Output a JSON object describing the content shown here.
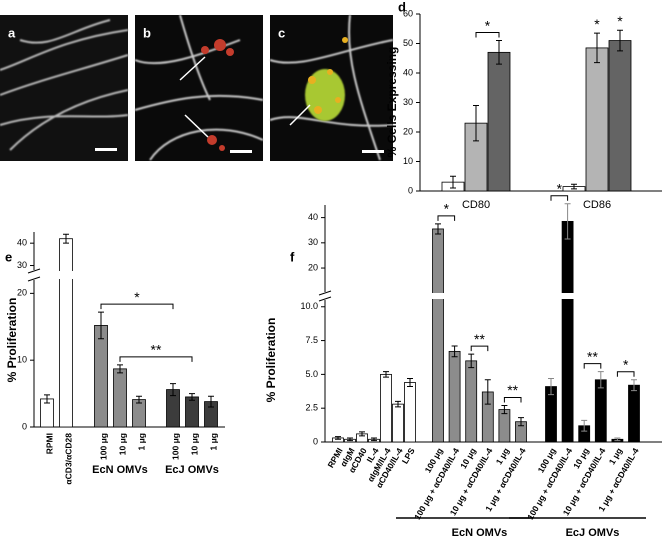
{
  "panels": [
    "a",
    "b",
    "c"
  ],
  "chart_data": [
    {
      "type": "bar",
      "label": "d",
      "ylabel": "% Cells Expressing",
      "categories": [
        "CD80",
        "CD86"
      ],
      "series": [
        {
          "color": "#ffffff",
          "values": [
            3,
            1.5
          ],
          "errors": [
            2,
            0.8
          ]
        },
        {
          "color": "#b4b4b4",
          "values": [
            23,
            48.5
          ],
          "errors": [
            6,
            5
          ]
        },
        {
          "color": "#646464",
          "values": [
            47,
            51
          ],
          "errors": [
            4,
            3.5
          ]
        }
      ],
      "ylim": [
        0,
        60
      ],
      "yticks": [
        0,
        10,
        20,
        30,
        40,
        50,
        60
      ],
      "annotations": [
        "*",
        "*",
        "*"
      ]
    },
    {
      "type": "bar",
      "label": "e",
      "ylabel": "% Proliferation",
      "categories": [
        "RPMI",
        "αCD3/αCD28",
        "100 μg",
        "10 μg",
        "1 μg",
        "100 μg",
        "10 μg",
        "1 μg"
      ],
      "values": [
        4.2,
        42,
        15.2,
        8.7,
        4.1,
        5.6,
        4.5,
        3.8
      ],
      "errors": [
        0.6,
        2,
        2,
        0.6,
        0.5,
        0.9,
        0.5,
        0.8
      ],
      "colors": [
        "#ffffff",
        "#ffffff",
        "#8c8c8c",
        "#8c8c8c",
        "#8c8c8c",
        "#3c3c3c",
        "#3c3c3c",
        "#3c3c3c"
      ],
      "axis_segments": [
        {
          "ylim": [
            0,
            22
          ],
          "yticks": [
            0,
            10,
            20
          ]
        },
        {
          "ylim": [
            28,
            45
          ],
          "yticks": [
            30,
            40
          ]
        }
      ],
      "groups": [
        "EcN OMVs",
        "EcJ OMVs"
      ],
      "annotations": [
        "*",
        "**"
      ]
    },
    {
      "type": "bar",
      "label": "f",
      "ylabel": "% Proliferation",
      "categories": [
        "RPMI",
        "αIgM",
        "αCD40",
        "IL-4",
        "αIgM/IL-4",
        "αCD40/IL-4",
        "LPS",
        null,
        "100 μg",
        "100 μg + αCD40/IL-4",
        "10 μg",
        "10 μg + αCD40/IL-4",
        "1 μg",
        "1 μg + αCD40/IL-4",
        null,
        "100 μg",
        "100 μg + αCD40/IL-4",
        "10 μg",
        "10 μg + αCD40/IL-4",
        "1 μg",
        "1 μg + αCD40/IL-4"
      ],
      "values": [
        0.3,
        0.2,
        0.6,
        0.2,
        5.0,
        2.8,
        4.4,
        null,
        35.5,
        6.7,
        6.0,
        3.7,
        2.4,
        1.5,
        null,
        4.1,
        38.5,
        1.2,
        4.6,
        0.2,
        4.2
      ],
      "errors": [
        0.1,
        0.1,
        0.15,
        0.1,
        0.2,
        0.2,
        0.3,
        null,
        2,
        0.4,
        0.5,
        0.9,
        0.3,
        0.3,
        null,
        0.6,
        7,
        0.4,
        0.6,
        0.1,
        0.4
      ],
      "colors": [
        "#ffffff",
        "#ffffff",
        "#ffffff",
        "#ffffff",
        "#ffffff",
        "#ffffff",
        "#ffffff",
        null,
        "#8c8c8c",
        "#8c8c8c",
        "#8c8c8c",
        "#8c8c8c",
        "#8c8c8c",
        "#8c8c8c",
        null,
        "#000000",
        "#000000",
        "#000000",
        "#000000",
        "#000000",
        "#000000"
      ],
      "axis_segments": [
        {
          "ylim": [
            0,
            10.5
          ],
          "yticks": [
            0,
            2.5,
            {
              "value": 5,
              "label": "5.0"
            },
            7.5,
            {
              "value": 10,
              "label": "10.0"
            }
          ]
        },
        {
          "ylim": [
            10.5,
            45
          ],
          "yticks": [
            20,
            30,
            40
          ]
        }
      ],
      "groups": [
        "EcN OMVs",
        "EcJ OMVs"
      ],
      "annotations": [
        "*",
        "**",
        "**",
        "*",
        "**",
        "*"
      ]
    }
  ]
}
